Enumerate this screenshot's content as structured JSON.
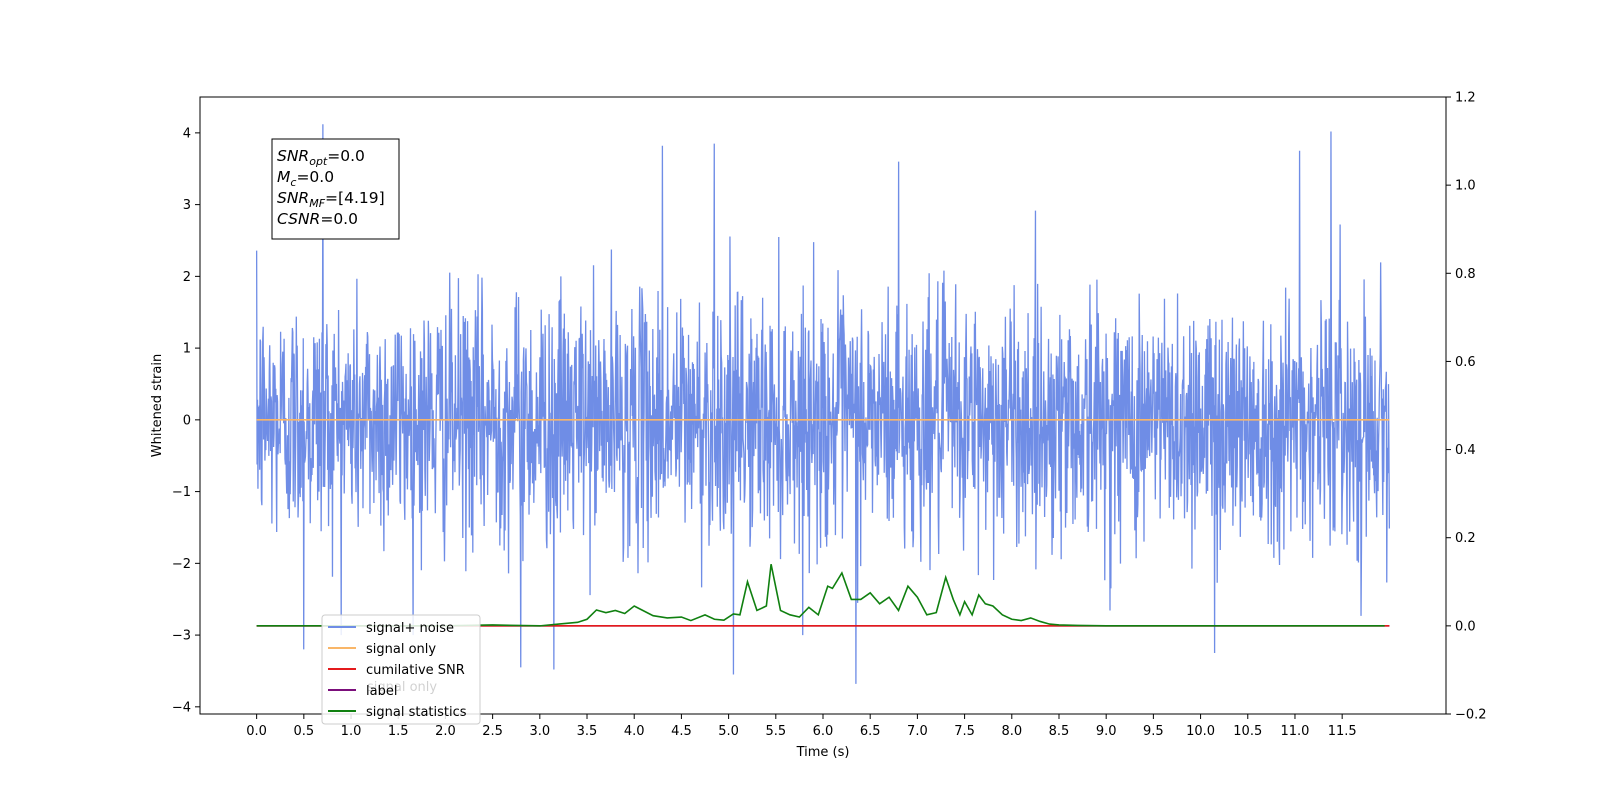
{
  "chart_data": {
    "type": "line",
    "xlabel": "Time (s)",
    "ylabel": "Whitened strain",
    "xlim": [
      -0.6,
      12.6
    ],
    "ylim": [
      -4.1,
      4.5
    ],
    "ylim_right": [
      -0.2,
      1.2
    ],
    "x_ticks": [
      0.0,
      0.5,
      1.0,
      1.5,
      2.0,
      2.5,
      3.0,
      3.5,
      4.0,
      4.5,
      5.0,
      5.5,
      6.0,
      6.5,
      7.0,
      7.5,
      8.0,
      8.5,
      9.0,
      9.5,
      10.0,
      10.5,
      11.0,
      11.5
    ],
    "x_tick_labels": [
      "0.0",
      "0.5",
      "1.0",
      "1.5",
      "2.0",
      "2.5",
      "3.0",
      "3.5",
      "4.0",
      "4.5",
      "5.0",
      "5.5",
      "6.0",
      "6.5",
      "7.0",
      "7.5",
      "8.0",
      "8.5",
      "9.0",
      "9.5",
      "10.0",
      "10.5",
      "11.0",
      "11.5"
    ],
    "y_ticks_left": [
      -4,
      -3,
      -2,
      -1,
      0,
      1,
      2,
      3,
      4
    ],
    "y_tick_labels_left": [
      "−4",
      "−3",
      "−2",
      "−1",
      "0",
      "1",
      "2",
      "3",
      "4"
    ],
    "y_ticks_right": [
      -0.2,
      0.0,
      0.2,
      0.4,
      0.6,
      0.8,
      1.0,
      1.2
    ],
    "y_tick_labels_right": [
      "−0.2",
      "0.0",
      "0.2",
      "0.4",
      "0.6",
      "0.8",
      "1.0",
      "1.2"
    ],
    "grid": false,
    "legend_placement": "lower-left",
    "series": [
      {
        "name": "signal+ noise",
        "color": "#6f8de6",
        "axis": "left",
        "kind": "noise",
        "x_range": [
          0.0,
          12.0
        ],
        "sigma": 1.0,
        "highlights": [
          {
            "x": 0.7,
            "y": 4.12
          },
          {
            "x": 11.38,
            "y": 4.02
          },
          {
            "x": 6.35,
            "y": -3.68
          },
          {
            "x": 5.05,
            "y": -3.55
          },
          {
            "x": 3.15,
            "y": -3.48
          },
          {
            "x": 2.8,
            "y": -3.45
          },
          {
            "x": 10.15,
            "y": -3.25
          },
          {
            "x": 0.5,
            "y": -3.2
          },
          {
            "x": 11.05,
            "y": 3.75
          },
          {
            "x": 4.3,
            "y": 3.82
          },
          {
            "x": 4.85,
            "y": 3.85
          },
          {
            "x": 6.8,
            "y": 3.6
          }
        ]
      },
      {
        "name": "signal only",
        "color": "#f9b668",
        "axis": "left",
        "kind": "line",
        "x": [
          0.0,
          12.0
        ],
        "y": [
          0.0,
          0.0
        ]
      },
      {
        "name": "cumilative SNR",
        "color": "#e41a1c",
        "axis": "right",
        "kind": "line",
        "x": [
          0.0,
          12.0
        ],
        "y": [
          0.0,
          0.0
        ]
      },
      {
        "name": "label",
        "color": "#7b0e7b",
        "axis": "right",
        "kind": "line",
        "x": [
          0.0,
          12.0
        ],
        "y": [
          0.0,
          0.0
        ]
      },
      {
        "name": "signal statistics",
        "color": "#108010",
        "axis": "right",
        "kind": "line",
        "x": [
          0.0,
          2.0,
          2.5,
          3.0,
          3.2,
          3.4,
          3.5,
          3.6,
          3.7,
          3.8,
          3.9,
          4.0,
          4.2,
          4.35,
          4.5,
          4.6,
          4.75,
          4.85,
          4.95,
          5.05,
          5.12,
          5.2,
          5.3,
          5.4,
          5.45,
          5.55,
          5.65,
          5.75,
          5.85,
          5.95,
          6.05,
          6.1,
          6.2,
          6.3,
          6.4,
          6.5,
          6.6,
          6.7,
          6.8,
          6.9,
          7.0,
          7.1,
          7.2,
          7.3,
          7.38,
          7.45,
          7.5,
          7.58,
          7.65,
          7.72,
          7.8,
          7.9,
          8.0,
          8.1,
          8.2,
          8.3,
          8.4,
          8.5,
          8.7,
          9.0,
          9.5,
          10.0,
          11.0,
          11.95
        ],
        "y": [
          0.0,
          0.0,
          0.002,
          0.0,
          0.004,
          0.008,
          0.015,
          0.036,
          0.03,
          0.035,
          0.028,
          0.045,
          0.023,
          0.018,
          0.02,
          0.012,
          0.025,
          0.015,
          0.013,
          0.027,
          0.025,
          0.1,
          0.035,
          0.045,
          0.14,
          0.035,
          0.025,
          0.02,
          0.042,
          0.025,
          0.09,
          0.085,
          0.12,
          0.06,
          0.06,
          0.075,
          0.05,
          0.065,
          0.035,
          0.09,
          0.065,
          0.025,
          0.03,
          0.11,
          0.06,
          0.025,
          0.055,
          0.025,
          0.07,
          0.05,
          0.045,
          0.025,
          0.015,
          0.012,
          0.018,
          0.01,
          0.004,
          0.002,
          0.001,
          0.0,
          0.0,
          0.0,
          0.0,
          0.0
        ]
      }
    ],
    "legend_entries": [
      {
        "label": "signal+ noise",
        "color": "#6f8de6"
      },
      {
        "label": "signal only",
        "color": "#f9b668"
      },
      {
        "label": "cumilative SNR",
        "color": "#e41a1c"
      },
      {
        "label": "label",
        "color": "#7b0e7b"
      },
      {
        "label": "signal statistics",
        "color": "#108010"
      }
    ],
    "annotation_box": {
      "lines": [
        {
          "base": "SNR",
          "sub": "opt",
          "rest": "=0.0"
        },
        {
          "base": "M",
          "sub": "c",
          "rest": "=0.0"
        },
        {
          "base": "SNR",
          "sub": "MF",
          "rest": "=[4.19]"
        },
        {
          "base": "CSNR",
          "sub": "",
          "rest": "=0.0"
        }
      ]
    },
    "legend_ghost_text": "signal only"
  }
}
